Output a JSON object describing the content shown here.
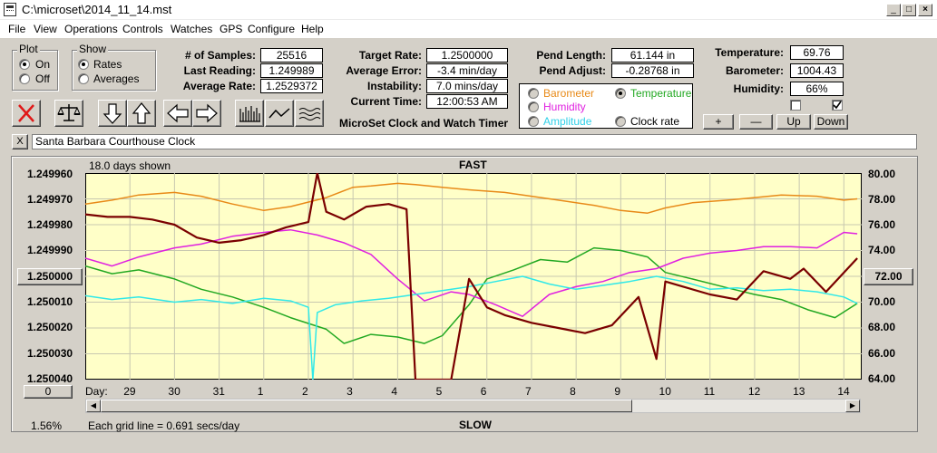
{
  "window": {
    "title": "C:\\microset\\2014_11_14.mst",
    "minimize": "_",
    "maximize": "□",
    "close": "×"
  },
  "menu": [
    "File",
    "View",
    "Operations",
    "Controls",
    "Watches",
    "GPS",
    "Configure",
    "Help"
  ],
  "plot_group": {
    "title": "Plot",
    "on": "On",
    "off": "Off",
    "selected": "On"
  },
  "show_group": {
    "title": "Show",
    "rates": "Rates",
    "averages": "Averages",
    "selected": "Rates"
  },
  "stats": {
    "samples_label": "# of Samples:",
    "samples": "25516",
    "last_reading_label": "Last Reading:",
    "last_reading": "1.249989",
    "average_rate_label": "Average Rate:",
    "average_rate": "1.2529372",
    "target_rate_label": "Target Rate:",
    "target_rate": "1.2500000",
    "average_error_label": "Average Error:",
    "average_error": "-3.4 min/day",
    "instability_label": "Instability:",
    "instability": "7.0 mins/day",
    "current_time_label": "Current Time:",
    "current_time": "12:00:53 AM",
    "pend_length_label": "Pend Length:",
    "pend_length": "61.144 in",
    "pend_adjust_label": "Pend Adjust:",
    "pend_adjust": "-0.28768 in",
    "temperature_label": "Temperature:",
    "temperature": "69.76",
    "barometer_label": "Barometer:",
    "barometer": "1004.43",
    "humidity_label": "Humidity:",
    "humidity": "66%"
  },
  "sensor_select": {
    "barometer": "Barometer",
    "temperature": "Temperature",
    "humidity": "Humidity",
    "amplitude": "Amplitude",
    "clock_rate": "Clock rate",
    "selected": "Temperature"
  },
  "app_caption": "MicroSet Clock and Watch Timer",
  "scale_buttons": {
    "plus": "+",
    "minus": "—",
    "up": "Up",
    "down": "Down"
  },
  "checkboxes": {
    "left_checked": false,
    "right_checked": true
  },
  "watch_name": "Santa Barbara Courthouse Clock",
  "watch_close": "X",
  "chart": {
    "days_shown": "18.0 days shown",
    "top_label": "FAST",
    "bottom_label": "SLOW",
    "grid_note": "Each grid line = 0.691 secs/day",
    "percent": "1.56%",
    "day_label": "Day:",
    "left_ticks": [
      "1.249960",
      "1.249970",
      "1.249980",
      "1.249990",
      "1.250000",
      "1.250010",
      "1.250020",
      "1.250030",
      "1.250040"
    ],
    "right_ticks": [
      "80.00",
      "78.00",
      "76.00",
      "74.00",
      "72.00",
      "70.00",
      "68.00",
      "66.00",
      "64.00"
    ],
    "left_center_value": "1.250000",
    "right_center_value": "72.00",
    "bottom_left_value": "0",
    "day_ticks": [
      "29",
      "30",
      "31",
      "1",
      "2",
      "3",
      "4",
      "5",
      "6",
      "7",
      "8",
      "9",
      "10",
      "11",
      "12",
      "13",
      "14"
    ],
    "colors": {
      "background": "#ffffc8",
      "barometer": "#e88a18",
      "temperature": "#22a822",
      "humidity": "#e020e0",
      "amplitude": "#30e8e8",
      "clock_rate": "#7a0000"
    }
  },
  "chart_data": {
    "type": "line",
    "x_unit": "days",
    "xlim": [
      0,
      17.4
    ],
    "y_left_label": "Clock rate",
    "ylim_left": [
      1.24996,
      1.25004
    ],
    "ylim_right": [
      64,
      80
    ],
    "series": [
      {
        "name": "Barometer",
        "axis": "right",
        "x": [
          0,
          0.6,
          1.2,
          2,
          2.6,
          3.3,
          4,
          4.6,
          5.4,
          6,
          6.4,
          7,
          7.4,
          8,
          8.6,
          9.4,
          10,
          10.6,
          11.4,
          12,
          12.6,
          13,
          13.6,
          14.4,
          15,
          15.6,
          16.4,
          17,
          17.3
        ],
        "y": [
          77.6,
          77.9,
          78.3,
          78.5,
          78.2,
          77.6,
          77.1,
          77.4,
          78.1,
          78.9,
          79.0,
          79.2,
          79.1,
          78.9,
          78.7,
          78.5,
          78.2,
          77.9,
          77.5,
          77.1,
          76.9,
          77.3,
          77.7,
          77.9,
          78.1,
          78.3,
          78.2,
          77.9,
          78.0
        ]
      },
      {
        "name": "Temperature",
        "axis": "right",
        "x": [
          0,
          0.6,
          1.2,
          2,
          2.6,
          3.3,
          4,
          4.6,
          5.4,
          5.8,
          6.4,
          7,
          7.6,
          8,
          8.6,
          9,
          9.6,
          10.2,
          10.8,
          11.4,
          12,
          12.6,
          13,
          13.6,
          14.4,
          15,
          15.6,
          16.2,
          16.8,
          17.3
        ],
        "y": [
          72.8,
          72.2,
          72.5,
          71.8,
          71.0,
          70.4,
          69.6,
          68.8,
          67.9,
          66.8,
          67.5,
          67.3,
          66.8,
          67.4,
          69.8,
          71.8,
          72.5,
          73.3,
          73.1,
          74.2,
          74.0,
          73.5,
          72.3,
          71.8,
          71.1,
          70.6,
          70.2,
          69.4,
          68.8,
          69.9
        ]
      },
      {
        "name": "Humidity",
        "axis": "right",
        "x": [
          0,
          0.6,
          1.2,
          2,
          2.6,
          3.3,
          4,
          4.6,
          5.2,
          5.8,
          6.4,
          7,
          7.6,
          8.2,
          8.6,
          9.2,
          9.8,
          10.4,
          11,
          11.6,
          12.2,
          12.8,
          13.4,
          14,
          14.6,
          15.2,
          15.8,
          16.4,
          17,
          17.3
        ],
        "y": [
          73.4,
          72.8,
          73.5,
          74.2,
          74.5,
          75.1,
          75.4,
          75.6,
          75.2,
          74.6,
          73.7,
          71.8,
          70.1,
          70.8,
          70.6,
          69.8,
          68.9,
          70.6,
          71.2,
          71.6,
          72.3,
          72.6,
          73.4,
          73.8,
          74.0,
          74.3,
          74.3,
          74.2,
          75.4,
          75.3
        ]
      },
      {
        "name": "Amplitude",
        "axis": "right",
        "x": [
          0,
          0.6,
          1.2,
          2,
          2.6,
          3.3,
          4,
          4.6,
          5,
          5.1,
          5.2,
          5.6,
          6.2,
          6.8,
          7.4,
          8,
          8.6,
          9.2,
          9.8,
          10.4,
          11,
          11.6,
          12.2,
          12.8,
          13.4,
          14,
          14.6,
          15.2,
          15.8,
          16.4,
          17,
          17.3
        ],
        "y": [
          70.5,
          70.2,
          70.4,
          70.0,
          70.2,
          69.9,
          70.3,
          70.1,
          69.6,
          64.0,
          69.2,
          69.8,
          70.1,
          70.3,
          70.6,
          70.9,
          71.2,
          71.6,
          72.0,
          71.4,
          71.0,
          71.3,
          71.6,
          72.0,
          71.6,
          71.0,
          71.1,
          70.9,
          71.0,
          70.8,
          70.4,
          69.9
        ]
      },
      {
        "name": "Clock rate",
        "axis": "left",
        "x": [
          0,
          0.5,
          1,
          1.5,
          2,
          2.5,
          3,
          3.5,
          4,
          4.5,
          5,
          5.2,
          5.4,
          5.8,
          6.3,
          6.8,
          7.2,
          7.4,
          7.6,
          8.2,
          8.6,
          9,
          9.4,
          10,
          10.6,
          11.2,
          11.8,
          12.4,
          12.8,
          13,
          13.4,
          14,
          14.6,
          15.2,
          15.8,
          16.1,
          16.6,
          17.3
        ],
        "y": [
          1.249976,
          1.249977,
          1.249977,
          1.249978,
          1.24998,
          1.249985,
          1.249987,
          1.249986,
          1.249984,
          1.249981,
          1.249979,
          1.24996,
          1.249975,
          1.249978,
          1.249973,
          1.249972,
          1.249974,
          1.25004,
          1.250043,
          1.25004,
          1.250001,
          1.250012,
          1.250015,
          1.250018,
          1.25002,
          1.250022,
          1.250019,
          1.250008,
          1.250032,
          1.250002,
          1.250004,
          1.250007,
          1.250009,
          1.249998,
          1.250001,
          1.249997,
          1.250006,
          1.249993
        ]
      }
    ]
  }
}
